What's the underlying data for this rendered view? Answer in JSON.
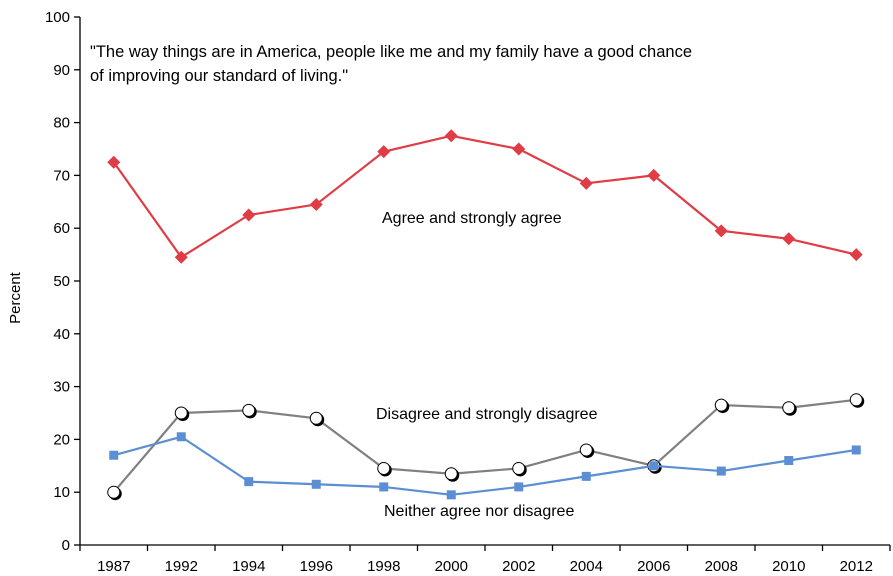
{
  "chart_data": {
    "type": "line",
    "quote_lines": [
      "\"The way things are in America, people like me and my family have a good chance",
      "of improving our standard of living.\""
    ],
    "ylabel": "Percent",
    "xlabel": "",
    "ylim": [
      0,
      100
    ],
    "yticks": [
      0,
      10,
      20,
      30,
      40,
      50,
      60,
      70,
      80,
      90,
      100
    ],
    "categories": [
      "1987",
      "1992",
      "1994",
      "1996",
      "1998",
      "2000",
      "2002",
      "2004",
      "2006",
      "2008",
      "2010",
      "2012"
    ],
    "series": [
      {
        "label": "Agree and strongly agree",
        "color": "#e03c46",
        "marker": "diamond",
        "values": [
          72.5,
          54.5,
          62.5,
          64.5,
          74.5,
          77.5,
          75,
          68.5,
          70,
          59.5,
          58,
          55
        ]
      },
      {
        "label": "Disagree and strongly disagree",
        "color": "#808080",
        "marker": "circle",
        "values": [
          10,
          25,
          25.5,
          24,
          14.5,
          13.5,
          14.5,
          18,
          15,
          26.5,
          26,
          27.5
        ]
      },
      {
        "label": "Neither agree nor disagree",
        "color": "#5b8ed2",
        "marker": "square",
        "values": [
          17,
          20.5,
          12,
          11.5,
          11,
          9.5,
          11,
          13,
          15,
          14,
          16,
          18
        ]
      }
    ]
  }
}
